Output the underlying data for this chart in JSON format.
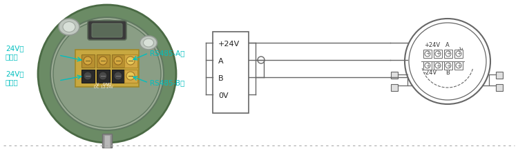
{
  "bg_color": "#ffffff",
  "line_color": "#666666",
  "cyan_color": "#00BFBF",
  "box_labels": [
    "+24V",
    "A",
    "B",
    "0V"
  ],
  "right_labels_top": [
    "+24V",
    "A"
  ],
  "right_labels_bot": [
    "-24V",
    "B"
  ],
  "body_color": "#6b8b65",
  "body_edge": "#4a6a44",
  "body_inner_color": "#8a9e85",
  "body_inner_edge": "#607860",
  "term_gold_color": "#c8a840",
  "term_gold_edge": "#a08828",
  "term_dark_color": "#2a2a2a",
  "term_dark_edge": "#181818",
  "stem_color": "#909090",
  "stem_edge": "#707070",
  "connector_color": "#c0c8c0",
  "connector_edge": "#909890",
  "window_color": "#3a3a3a",
  "window_inner": "#5a6a58",
  "dot_color": "#aaaaaa"
}
